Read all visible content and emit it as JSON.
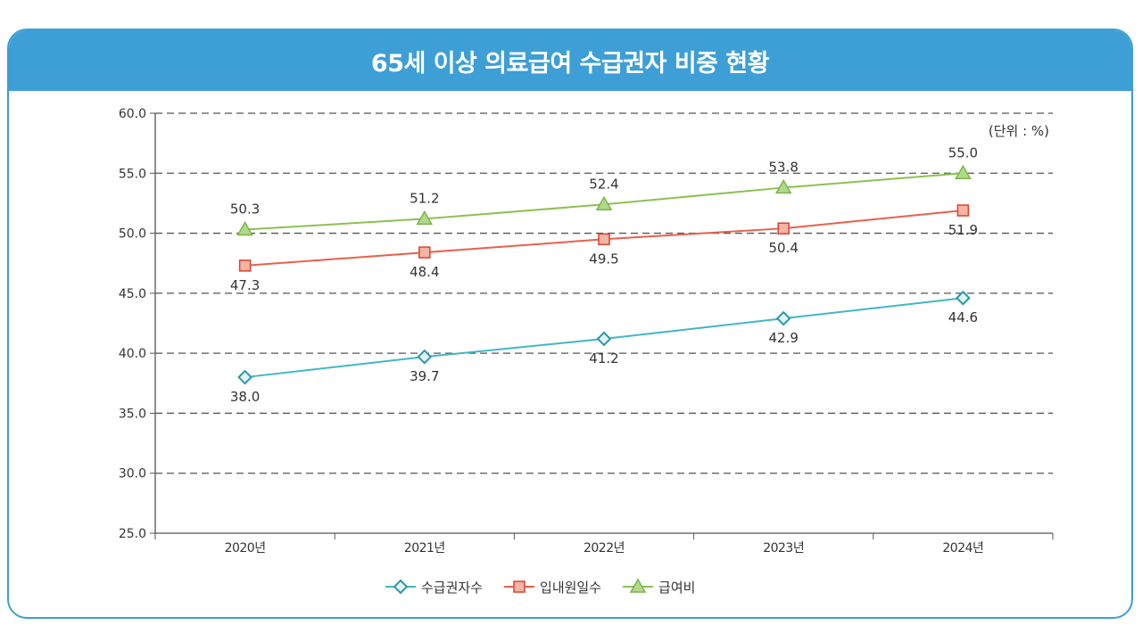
{
  "chart_data": {
    "type": "line",
    "title": "65세 이상 의료급여 수급권자 비중 현황",
    "unit_note": "(단위 : %)",
    "categories": [
      "2020년",
      "2021년",
      "2022년",
      "2023년",
      "2024년"
    ],
    "ylim": [
      25.0,
      60.0
    ],
    "yticks": [
      "60.0",
      "55.0",
      "50.0",
      "45.0",
      "40.0",
      "35.0",
      "30.0",
      "25.0"
    ],
    "grid": "horizontal dashed",
    "legend": "bottom",
    "series": [
      {
        "name": "수급권자수",
        "marker": "diamond",
        "color": "#3fb8c4",
        "values": [
          38.0,
          39.7,
          41.2,
          42.9,
          44.6
        ],
        "labels": [
          "38.0",
          "39.7",
          "41.2",
          "42.9",
          "44.6"
        ]
      },
      {
        "name": "입내원일수",
        "marker": "square",
        "color": "#e8604c",
        "values": [
          47.3,
          48.4,
          49.5,
          50.4,
          51.9
        ],
        "labels": [
          "47.3",
          "48.4",
          "49.5",
          "50.4",
          "51.9"
        ]
      },
      {
        "name": "급여비",
        "marker": "triangle",
        "color": "#8cc152",
        "values": [
          50.3,
          51.2,
          52.4,
          53.8,
          55.0
        ],
        "labels": [
          "50.3",
          "51.2",
          "52.4",
          "53.8",
          "55.0"
        ]
      }
    ]
  }
}
